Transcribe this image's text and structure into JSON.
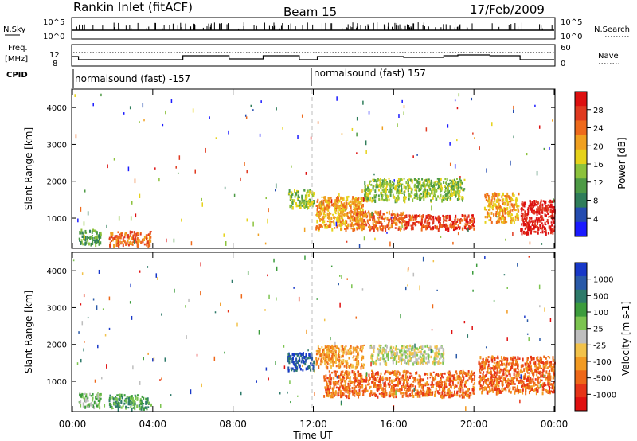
{
  "header": {
    "station": "Rankin Inlet (fitACF)",
    "beam": "Beam 15",
    "date": "17/Feb/2009"
  },
  "panels": {
    "nsky_label": "N.Sky",
    "nsearch_label": "N.Search",
    "freq_label_1": "Freq.",
    "freq_label_2": "[MHz]",
    "nave_label": "Nave",
    "cpid_label": "CPID",
    "nsky_ticks": [
      "10^5",
      "10^0"
    ],
    "nsearch_ticks": [
      "10^5",
      "10^0"
    ],
    "freq_ticks": [
      "12",
      "8"
    ],
    "nave_ticks": [
      "60",
      "0"
    ],
    "cpid_segments": [
      "normalsound (fast) -157",
      "normalsound (fast) 157"
    ]
  },
  "colors": {
    "power_scale": [
      "#1a1aff",
      "#244cb0",
      "#2f7d5a",
      "#4d9a45",
      "#8cc23c",
      "#e6d21a",
      "#f0a020",
      "#ee6a1c",
      "#e03a20",
      "#dd1010"
    ],
    "velocity_scale": [
      "#1838c8",
      "#2a5aa8",
      "#2e7a6a",
      "#3c9c3c",
      "#7cc450",
      "#bebebe",
      "#f2c24a",
      "#f29a22",
      "#ee6818",
      "#e63418",
      "#e01010"
    ]
  },
  "chart_data": [
    {
      "type": "heatmap",
      "title": "Power",
      "xlabel": "Time UT",
      "ylabel": "Slant Range [km]",
      "xlim": [
        "00:00",
        "24:00"
      ],
      "ylim": [
        180,
        4500
      ],
      "x_ticks": [
        "00:00",
        "04:00",
        "08:00",
        "12:00",
        "16:00",
        "20:00",
        "00:00"
      ],
      "y_ticks": [
        "1000",
        "2000",
        "3000",
        "4000"
      ],
      "colorbar_label": "Power [dB]",
      "colorbar_ticks": [
        "4",
        "8",
        "12",
        "16",
        "20",
        "24",
        "28"
      ],
      "regions": [
        {
          "t0": 0.3,
          "t1": 1.4,
          "r0": 300,
          "r1": 700,
          "level": 3
        },
        {
          "t0": 1.8,
          "t1": 3.9,
          "r0": 250,
          "r1": 650,
          "level": 7
        },
        {
          "t0": 10.7,
          "t1": 12.0,
          "r0": 1300,
          "r1": 1800,
          "level": 4
        },
        {
          "t0": 12.1,
          "t1": 14.5,
          "r0": 700,
          "r1": 1600,
          "level": 6
        },
        {
          "t0": 14.0,
          "t1": 16.5,
          "r0": 700,
          "r1": 1200,
          "level": 7
        },
        {
          "t0": 14.5,
          "t1": 19.5,
          "r0": 1500,
          "r1": 2100,
          "level": 4
        },
        {
          "t0": 16.5,
          "t1": 20.0,
          "r0": 700,
          "r1": 1100,
          "level": 8
        },
        {
          "t0": 20.5,
          "t1": 22.2,
          "r0": 900,
          "r1": 1700,
          "level": 6
        },
        {
          "t0": 22.3,
          "t1": 24.0,
          "r0": 600,
          "r1": 1500,
          "level": 9
        }
      ]
    },
    {
      "type": "heatmap",
      "title": "Velocity",
      "xlabel": "Time UT",
      "ylabel": "Slant Range [km]",
      "xlim": [
        "00:00",
        "24:00"
      ],
      "ylim": [
        180,
        4500
      ],
      "x_ticks": [
        "00:00",
        "04:00",
        "08:00",
        "12:00",
        "16:00",
        "20:00",
        "00:00"
      ],
      "y_ticks": [
        "1000",
        "2000",
        "3000",
        "4000"
      ],
      "colorbar_label": "Velocity [m s-1]",
      "colorbar_ticks": [
        "1000",
        "500",
        "100",
        "25",
        "-25",
        "-100",
        "-500",
        "-1000"
      ],
      "regions": [
        {
          "t0": 0.3,
          "t1": 1.4,
          "r0": 300,
          "r1": 700,
          "level": 4
        },
        {
          "t0": 1.8,
          "t1": 3.9,
          "r0": 250,
          "r1": 650,
          "level": 3
        },
        {
          "t0": 10.7,
          "t1": 12.0,
          "r0": 1300,
          "r1": 1800,
          "level": 1
        },
        {
          "t0": 12.1,
          "t1": 14.5,
          "r0": 1400,
          "r1": 2000,
          "level": 7
        },
        {
          "t0": 14.8,
          "t1": 18.5,
          "r0": 1500,
          "r1": 2000,
          "level": 5
        },
        {
          "t0": 12.5,
          "t1": 20.0,
          "r0": 600,
          "r1": 1300,
          "level": 8
        },
        {
          "t0": 20.2,
          "t1": 24.0,
          "r0": 700,
          "r1": 1700,
          "level": 8
        }
      ]
    }
  ]
}
